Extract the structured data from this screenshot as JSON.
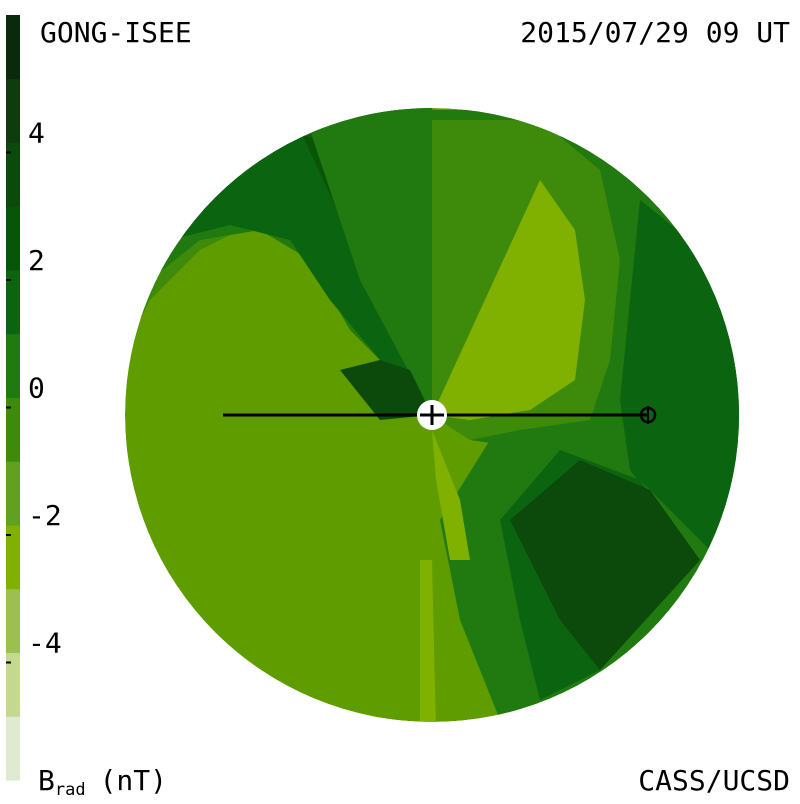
{
  "chart_data": {
    "type": "contour-map",
    "title": "GONG-ISEE",
    "subtitle": "2015/07/29 09 UT",
    "credit": "CASS/UCSD",
    "colorbar": {
      "label": "B",
      "label_subscript": "rad",
      "unit": "(nT)",
      "ylim": [
        -6,
        6
      ],
      "yticks": [
        -4,
        -2,
        0,
        2,
        4
      ],
      "colors": [
        "#e0ead0",
        "#c4d890",
        "#9cc050",
        "#80b000",
        "#62a020",
        "#3e8a0a",
        "#207a10",
        "#0a6410",
        "#085508",
        "#0b4a0b",
        "#0f3b0f",
        "#0b2a0b"
      ]
    }
  }
}
